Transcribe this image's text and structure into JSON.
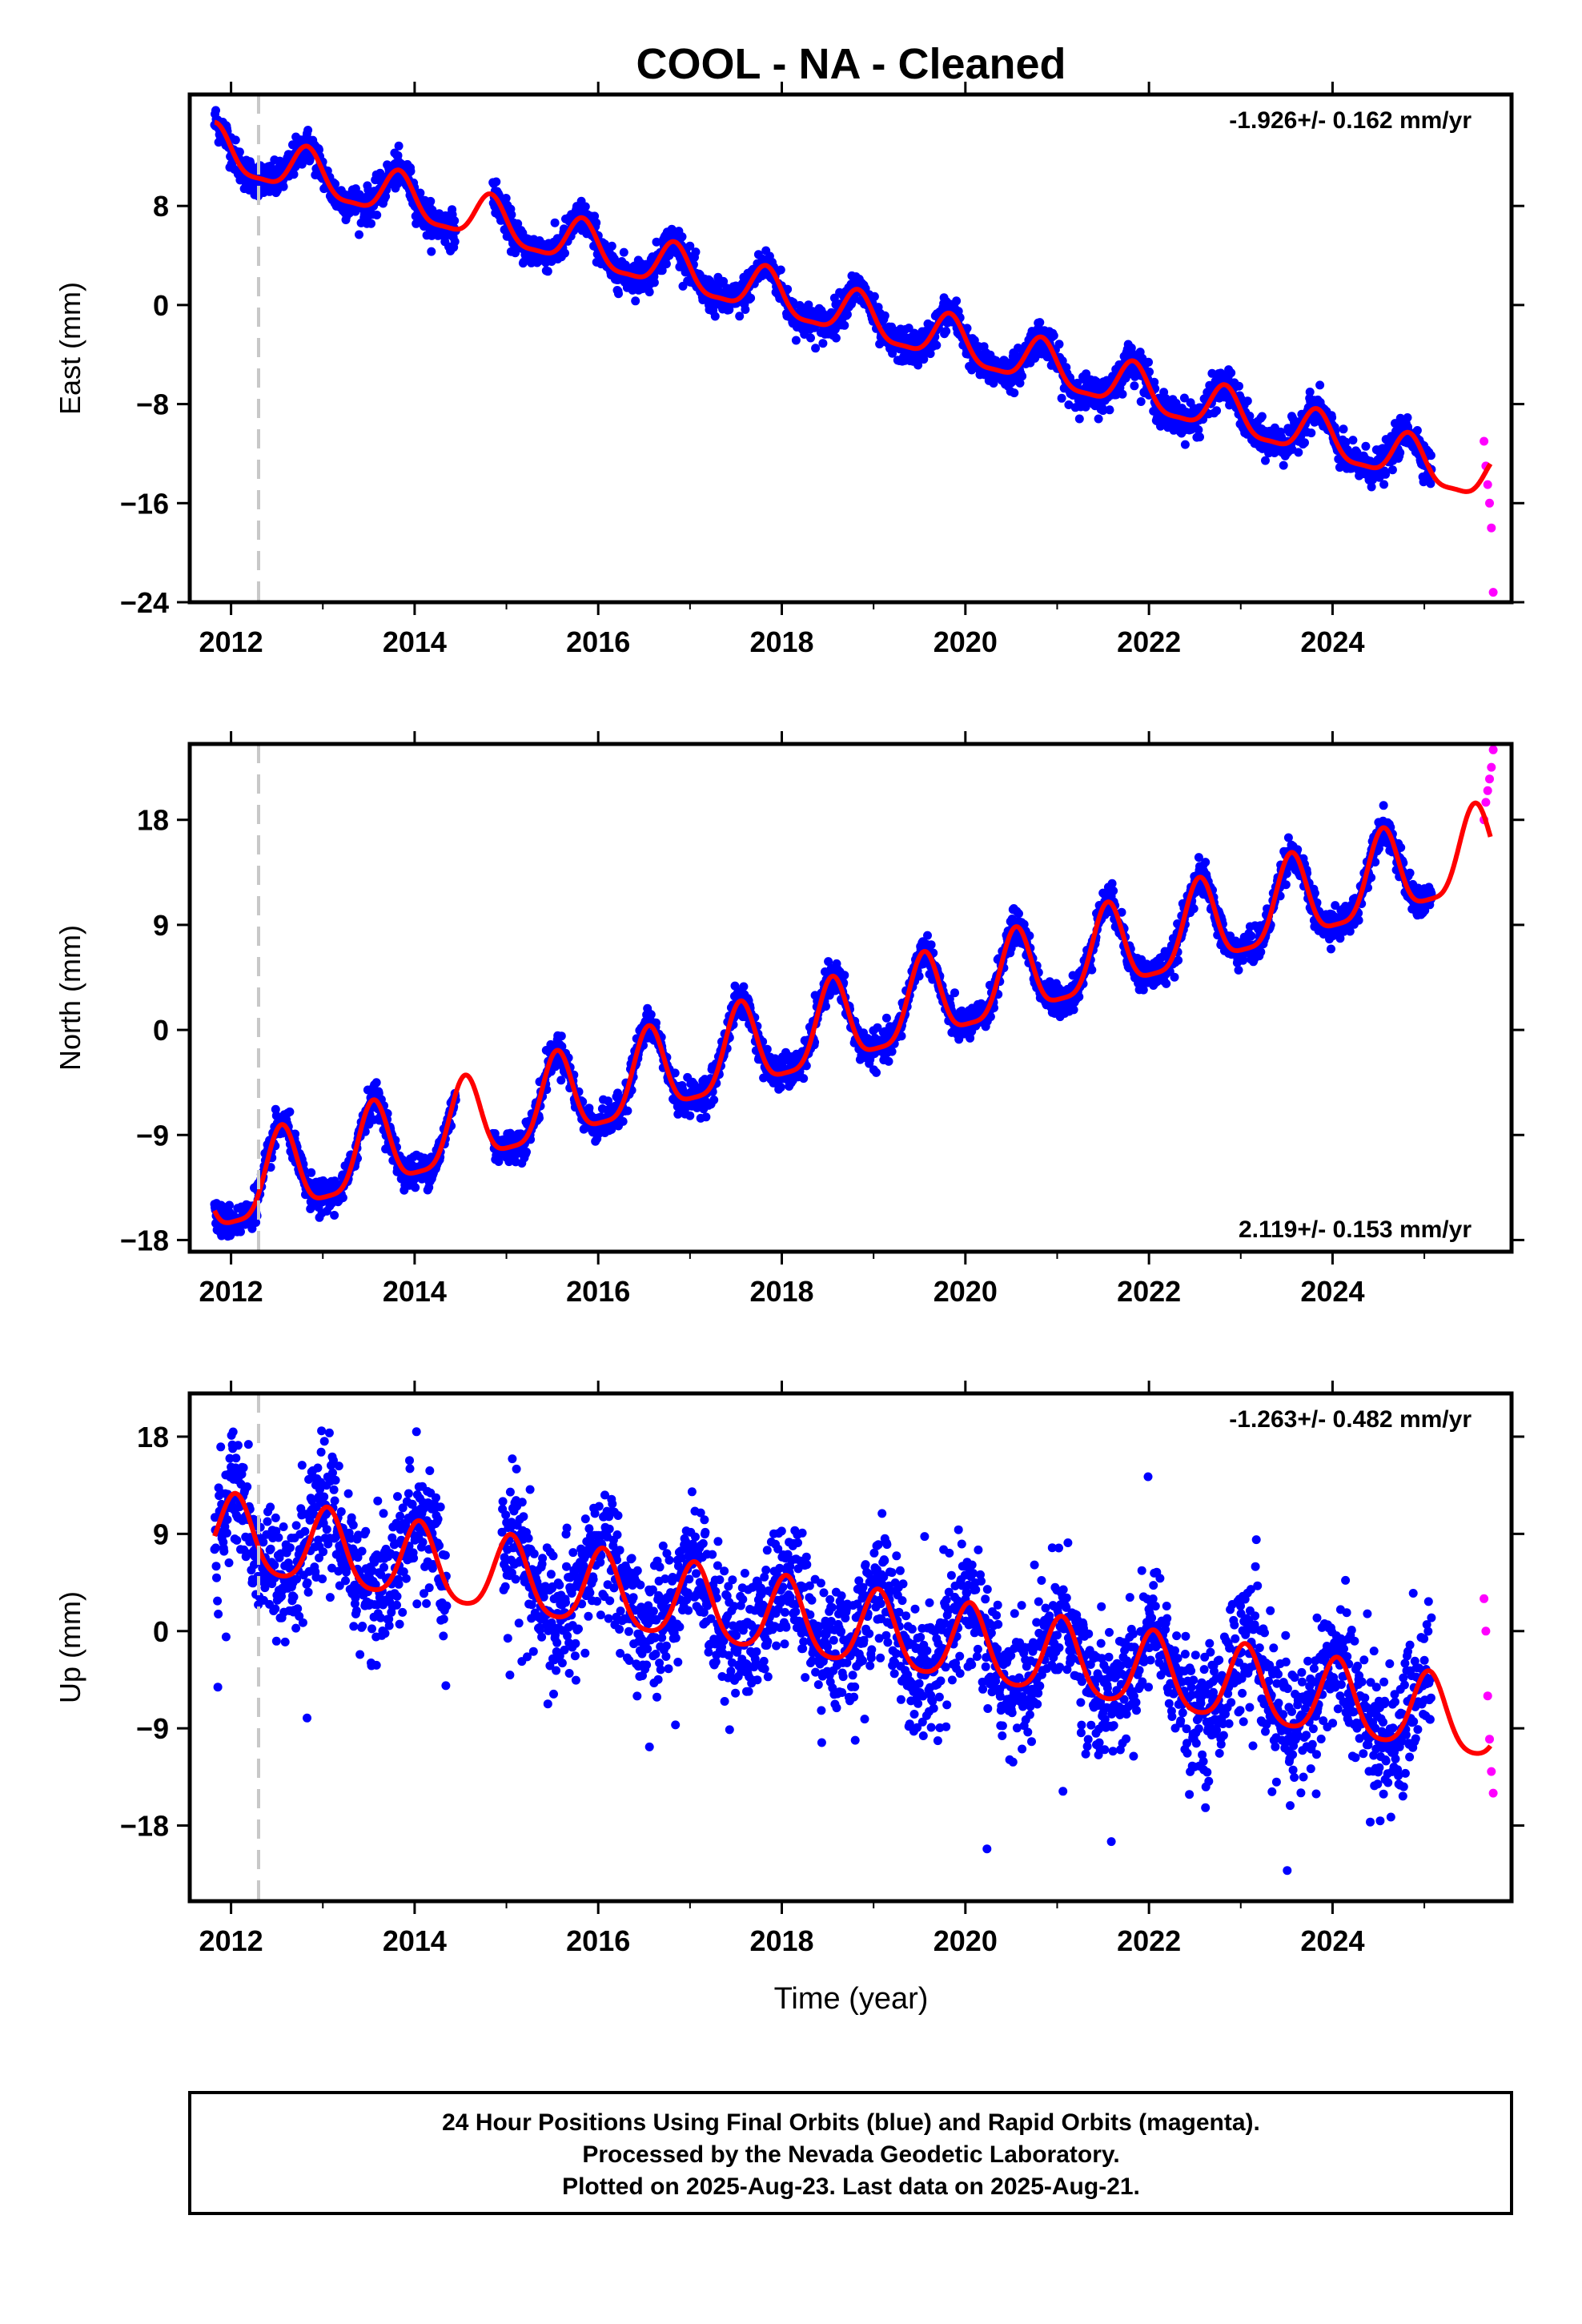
{
  "title": "COOL  - NA - Cleaned",
  "colors": {
    "final_orbits": "#0000ff",
    "rapid_orbits": "#ff00ff",
    "model": "#ff0000",
    "event_line": "#c8c8c8",
    "frame": "#000000"
  },
  "x_axis": {
    "label": "Time (year)",
    "range": [
      2011.55,
      2025.95
    ],
    "ticks": [
      2012,
      2014,
      2016,
      2018,
      2020,
      2022,
      2024
    ],
    "tick_labels": [
      "2012",
      "2014",
      "2016",
      "2018",
      "2020",
      "2022",
      "2024"
    ]
  },
  "event_line_year": 2012.3,
  "chart_data": [
    {
      "type": "scatter",
      "component": "east",
      "ylabel": "East (mm)",
      "ylim": [
        -24,
        17
      ],
      "yticks": [
        8,
        0,
        -8,
        -16,
        -24
      ],
      "ytick_labels": [
        "8",
        "0",
        "−8",
        "−16",
        "−24"
      ],
      "rate_label": "-1.926+/- 0.162 mm/yr",
      "rate_position": "top-right",
      "model": {
        "trend_mm_per_yr": -1.926,
        "anchor": [
          2018.5,
          -0.4
        ],
        "annual_amplitude": 1.8,
        "annual_peak_year_fraction": 0.83,
        "semiannual_amplitude": 0.5,
        "offset_at_event": 0,
        "begin_value": 11.5
      },
      "scatter_noise_mm": 1.0,
      "series": [
        {
          "name": "Final Orbits",
          "x": [
            2011.8,
            2012.8,
            2013.7,
            2014.8,
            2015.8,
            2016.8,
            2017.8,
            2018.8,
            2019.8,
            2020.8,
            2021.8,
            2022.8,
            2023.8,
            2024.8,
            2025.0
          ],
          "y": [
            11.0,
            12.2,
            10.8,
            8.8,
            6.5,
            4.6,
            2.6,
            1.0,
            -0.8,
            -2.8,
            -4.6,
            -6.8,
            -8.8,
            -10.9,
            -13.5
          ]
        },
        {
          "name": "Rapid Orbits",
          "x": [
            2025.6,
            2025.62,
            2025.64,
            2025.66,
            2025.68,
            2025.7
          ],
          "y": [
            -11,
            -13,
            -14.5,
            -16,
            -18,
            -23.2
          ]
        }
      ]
    },
    {
      "type": "scatter",
      "component": "north",
      "ylabel": "North (mm)",
      "ylim": [
        -19,
        24.5
      ],
      "yticks": [
        18,
        9,
        0,
        -9,
        -18
      ],
      "ytick_labels": [
        "18",
        "9",
        "0",
        "−9",
        "−18"
      ],
      "rate_label": "2.119+/- 0.153 mm/yr",
      "rate_position": "bottom-right",
      "model": {
        "trend_mm_per_yr": 2.119,
        "anchor": [
          2018.5,
          0.0
        ],
        "annual_amplitude": 3.6,
        "annual_peak_year_fraction": 0.55,
        "semiannual_amplitude": 0.9,
        "offset_at_event": 0,
        "begin_value": -16.0
      },
      "scatter_noise_mm": 1.0,
      "series": [
        {
          "name": "Final Orbits",
          "x": [
            2011.8,
            2012.5,
            2013.5,
            2014.5,
            2015.5,
            2016.5,
            2017.5,
            2018.5,
            2019.5,
            2020.5,
            2021.5,
            2022.5,
            2023.5,
            2024.5,
            2025.0
          ],
          "y": [
            -16.2,
            -9.4,
            -6.8,
            -4.5,
            -2.3,
            -0.2,
            2.0,
            4.2,
            6.3,
            8.5,
            10.6,
            12.7,
            14.8,
            17.0,
            12.5
          ]
        },
        {
          "name": "Rapid Orbits",
          "x": [
            2025.6,
            2025.62,
            2025.64,
            2025.66,
            2025.68,
            2025.7
          ],
          "y": [
            18,
            19.5,
            20.5,
            21.5,
            22.5,
            24
          ]
        }
      ]
    },
    {
      "type": "scatter",
      "component": "up",
      "ylabel": "Up (mm)",
      "ylim": [
        -25,
        22
      ],
      "yticks": [
        18,
        9,
        0,
        -9,
        -18
      ],
      "ytick_labels": [
        "18",
        "9",
        "0",
        "−9",
        "−18"
      ],
      "rate_label": "-1.263+/- 0.482 mm/yr",
      "rate_position": "top-right",
      "model": {
        "trend_mm_per_yr": -1.263,
        "anchor": [
          2018.5,
          0.5
        ],
        "annual_amplitude": 3.5,
        "annual_peak_year_fraction": 0.05,
        "semiannual_amplitude": 0.6,
        "offset_at_event": 0,
        "begin_value": 12.0
      },
      "scatter_noise_mm": 4.2,
      "series": [
        {
          "name": "Final Orbits",
          "x": [
            2011.8,
            2012.9,
            2013.9,
            2014.9,
            2015.9,
            2016.9,
            2017.9,
            2018.9,
            2019.9,
            2020.9,
            2021.9,
            2022.9,
            2023.9,
            2024.9,
            2025.0
          ],
          "y": [
            12.0,
            9.5,
            8.0,
            6.8,
            5.5,
            4.0,
            3.0,
            1.8,
            0.5,
            -0.8,
            -2.2,
            -3.3,
            -4.5,
            -6.0,
            -7.0
          ]
        },
        {
          "name": "Rapid Orbits",
          "x": [
            2025.6,
            2025.62,
            2025.64,
            2025.66,
            2025.68,
            2025.7
          ],
          "y": [
            3,
            0,
            -6,
            -10,
            -13,
            -15
          ]
        }
      ]
    }
  ],
  "footer": {
    "line1": "24 Hour Positions Using Final Orbits (blue) and Rapid Orbits (magenta).",
    "line2": "Processed by the Nevada Geodetic Laboratory.",
    "line3": "Plotted on 2025-Aug-23. Last data on 2025-Aug-21."
  }
}
